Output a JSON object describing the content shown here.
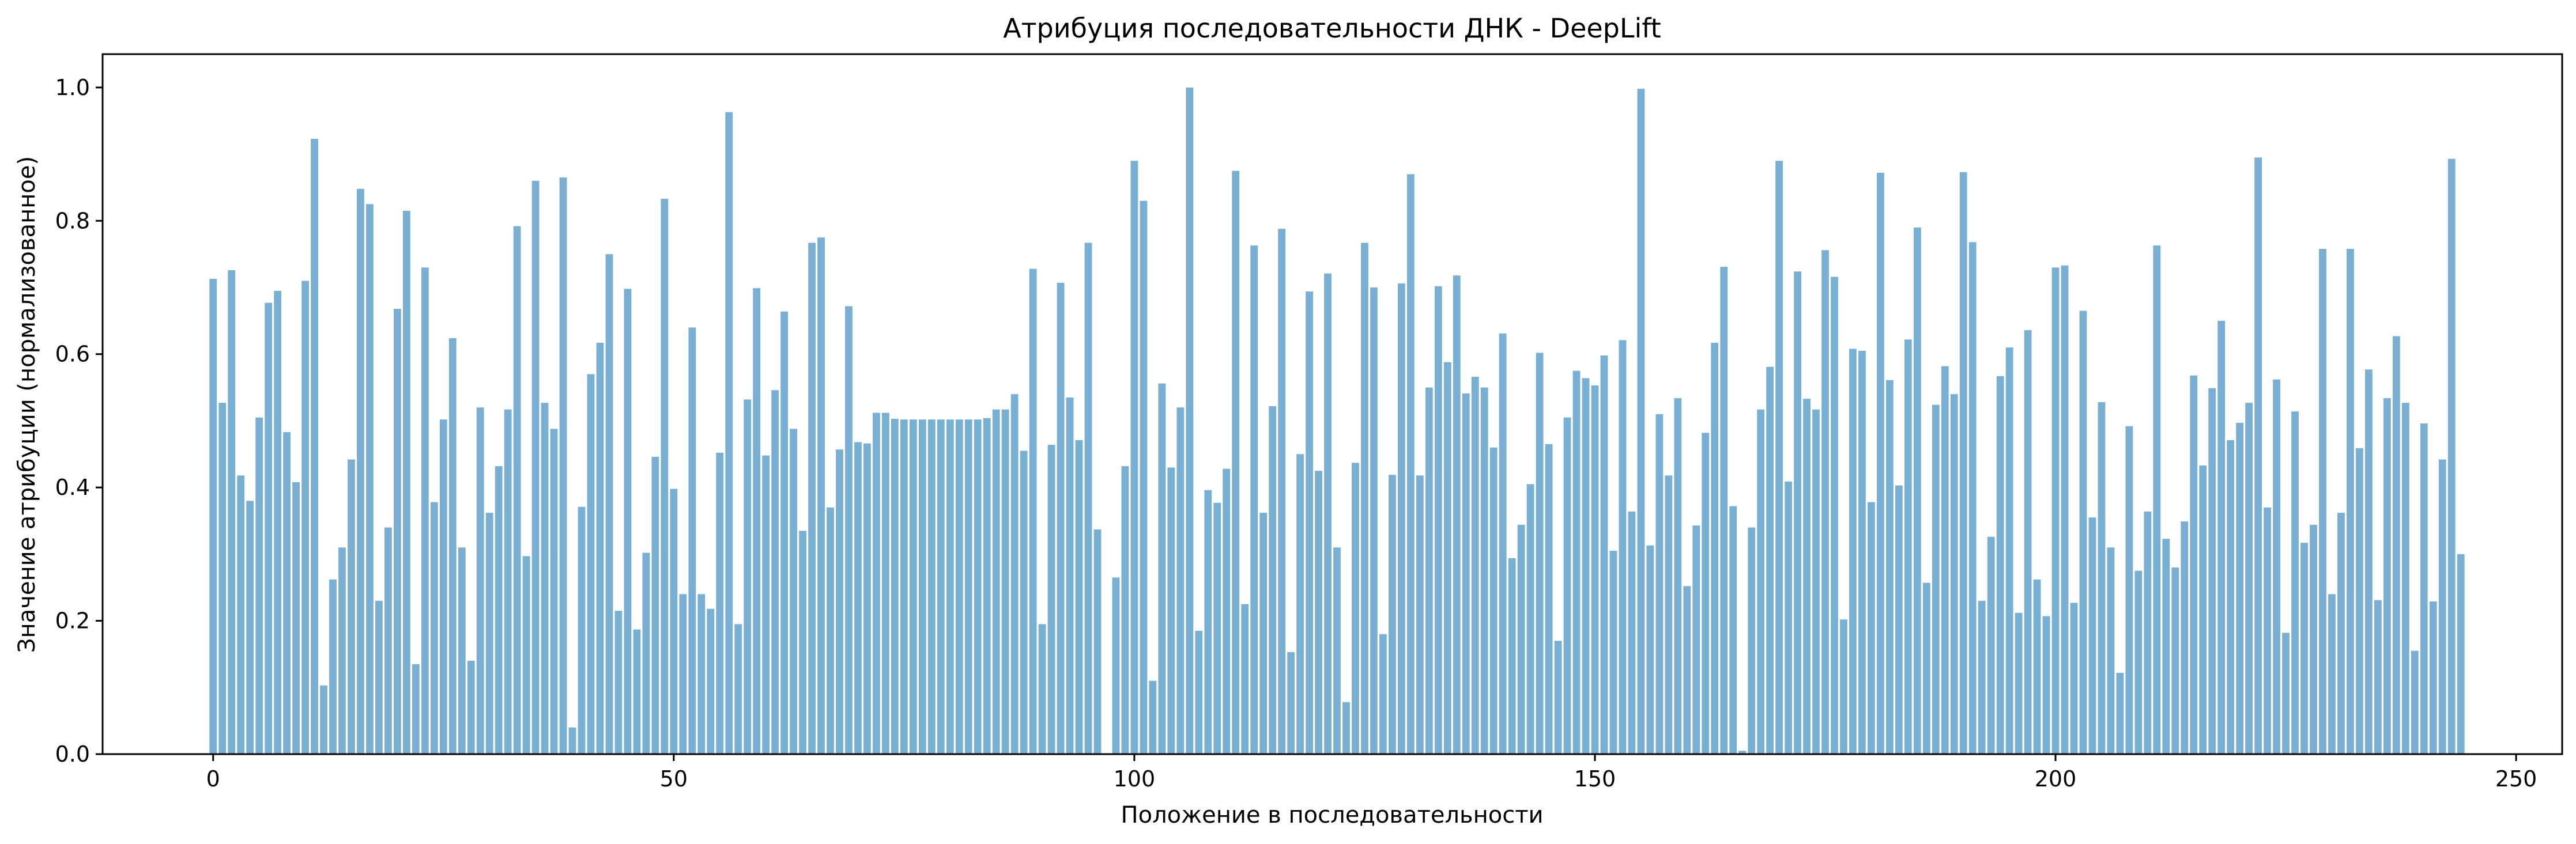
{
  "chart_data": {
    "type": "bar",
    "title": "Атрибуция последовательности ДНК - DeepLift",
    "xlabel": "Положение в последовательности",
    "ylabel": "Значение атрибуции (нормализованное)",
    "xlim": [
      -12,
      255
    ],
    "ylim": [
      0,
      1.05
    ],
    "xticks": [
      0,
      50,
      100,
      150,
      200,
      250
    ],
    "yticks": [
      0.0,
      0.2,
      0.4,
      0.6,
      0.8,
      1.0
    ],
    "xtick_labels": [
      "0",
      "50",
      "100",
      "150",
      "200",
      "250"
    ],
    "ytick_labels": [
      "0.0",
      "0.2",
      "0.4",
      "0.6",
      "0.8",
      "1.0"
    ],
    "grid": false,
    "bar_color": "#7aafd4",
    "values": [
      0.713,
      0.527,
      0.726,
      0.418,
      0.38,
      0.505,
      0.677,
      0.695,
      0.483,
      0.408,
      0.71,
      0.923,
      0.103,
      0.262,
      0.31,
      0.442,
      0.848,
      0.825,
      0.23,
      0.34,
      0.668,
      0.815,
      0.135,
      0.73,
      0.378,
      0.502,
      0.624,
      0.31,
      0.14,
      0.52,
      0.362,
      0.432,
      0.517,
      0.792,
      0.297,
      0.86,
      0.527,
      0.488,
      0.865,
      0.04,
      0.371,
      0.57,
      0.617,
      0.75,
      0.215,
      0.698,
      0.187,
      0.302,
      0.446,
      0.833,
      0.398,
      0.24,
      0.64,
      0.24,
      0.218,
      0.452,
      0.963,
      0.195,
      0.532,
      0.699,
      0.448,
      0.546,
      0.664,
      0.488,
      0.335,
      0.767,
      0.775,
      0.37,
      0.457,
      0.672,
      0.468,
      0.466,
      0.512,
      0.512,
      0.503,
      0.502,
      0.502,
      0.502,
      0.502,
      0.502,
      0.502,
      0.502,
      0.502,
      0.502,
      0.504,
      0.517,
      0.517,
      0.54,
      0.455,
      0.728,
      0.195,
      0.464,
      0.707,
      0.535,
      0.471,
      0.767,
      0.337,
      0.0,
      0.265,
      0.432,
      0.89,
      0.83,
      0.11,
      0.556,
      0.43,
      0.52,
      1.0,
      0.185,
      0.396,
      0.377,
      0.428,
      0.875,
      0.225,
      0.763,
      0.362,
      0.522,
      0.788,
      0.153,
      0.45,
      0.694,
      0.425,
      0.721,
      0.31,
      0.078,
      0.437,
      0.767,
      0.7,
      0.18,
      0.419,
      0.706,
      0.87,
      0.418,
      0.55,
      0.702,
      0.588,
      0.718,
      0.541,
      0.566,
      0.55,
      0.46,
      0.631,
      0.294,
      0.344,
      0.405,
      0.602,
      0.465,
      0.17,
      0.505,
      0.575,
      0.564,
      0.553,
      0.598,
      0.305,
      0.621,
      0.364,
      0.998,
      0.313,
      0.51,
      0.418,
      0.534,
      0.252,
      0.343,
      0.482,
      0.617,
      0.731,
      0.372,
      0.005,
      0.34,
      0.517,
      0.581,
      0.89,
      0.409,
      0.724,
      0.533,
      0.517,
      0.756,
      0.716,
      0.202,
      0.608,
      0.605,
      0.378,
      0.872,
      0.561,
      0.403,
      0.622,
      0.79,
      0.257,
      0.524,
      0.582,
      0.54,
      0.873,
      0.768,
      0.23,
      0.326,
      0.567,
      0.61,
      0.212,
      0.636,
      0.262,
      0.207,
      0.73,
      0.733,
      0.227,
      0.665,
      0.355,
      0.528,
      0.31,
      0.122,
      0.492,
      0.275,
      0.364,
      0.763,
      0.323,
      0.28,
      0.349,
      0.568,
      0.433,
      0.549,
      0.65,
      0.471,
      0.497,
      0.527,
      0.895,
      0.37,
      0.562,
      0.182,
      0.514,
      0.317,
      0.344,
      0.758,
      0.24,
      0.362,
      0.758,
      0.459,
      0.577,
      0.231,
      0.534,
      0.627,
      0.527,
      0.155,
      0.496,
      0.229,
      0.442,
      0.893,
      0.3
    ]
  }
}
